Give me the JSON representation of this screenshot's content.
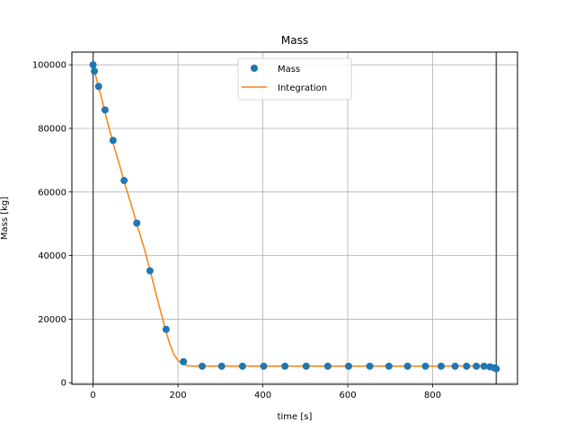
{
  "chart_data": {
    "type": "line",
    "title": "Mass",
    "xlabel": "time [s]",
    "ylabel": "Mass [kg]",
    "xlim": [
      -50,
      1000
    ],
    "ylim": [
      -500,
      104000
    ],
    "xticks": [
      0,
      200,
      400,
      600,
      800
    ],
    "yticks": [
      0,
      20000,
      40000,
      60000,
      80000,
      100000
    ],
    "grid": true,
    "legend": "upper-center",
    "vlines": [
      0,
      950
    ],
    "series": [
      {
        "name": "Mass",
        "kind": "scatter",
        "color": "#1f77b4",
        "x": [
          0,
          3,
          13,
          28,
          47,
          73,
          103,
          134,
          172,
          213,
          257,
          303,
          352,
          402,
          452,
          502,
          553,
          602,
          652,
          697,
          741,
          783,
          820,
          853,
          880,
          903,
          921,
          935,
          945,
          950
        ],
        "y": [
          100000,
          98000,
          93200,
          85800,
          76200,
          63600,
          50200,
          35200,
          16800,
          6600,
          5200,
          5200,
          5200,
          5200,
          5200,
          5200,
          5200,
          5200,
          5200,
          5200,
          5200,
          5200,
          5200,
          5200,
          5200,
          5200,
          5200,
          5000,
          4700,
          4400
        ]
      },
      {
        "name": "Integration",
        "kind": "line",
        "color": "#ff7f0e",
        "x": [
          0,
          5,
          10,
          20,
          30,
          40,
          50,
          60,
          75,
          90,
          105,
          120,
          135,
          150,
          160,
          170,
          180,
          190,
          200,
          210,
          220,
          235,
          250,
          300,
          400,
          500,
          600,
          700,
          800,
          900,
          930,
          940,
          950
        ],
        "y": [
          100000,
          97000,
          94500,
          89500,
          84000,
          79000,
          74000,
          69500,
          62500,
          56000,
          49000,
          42500,
          35000,
          27000,
          22000,
          17000,
          12500,
          9000,
          7000,
          5900,
          5400,
          5200,
          5200,
          5200,
          5200,
          5200,
          5200,
          5200,
          5200,
          5200,
          5100,
          4800,
          4400
        ]
      }
    ]
  }
}
